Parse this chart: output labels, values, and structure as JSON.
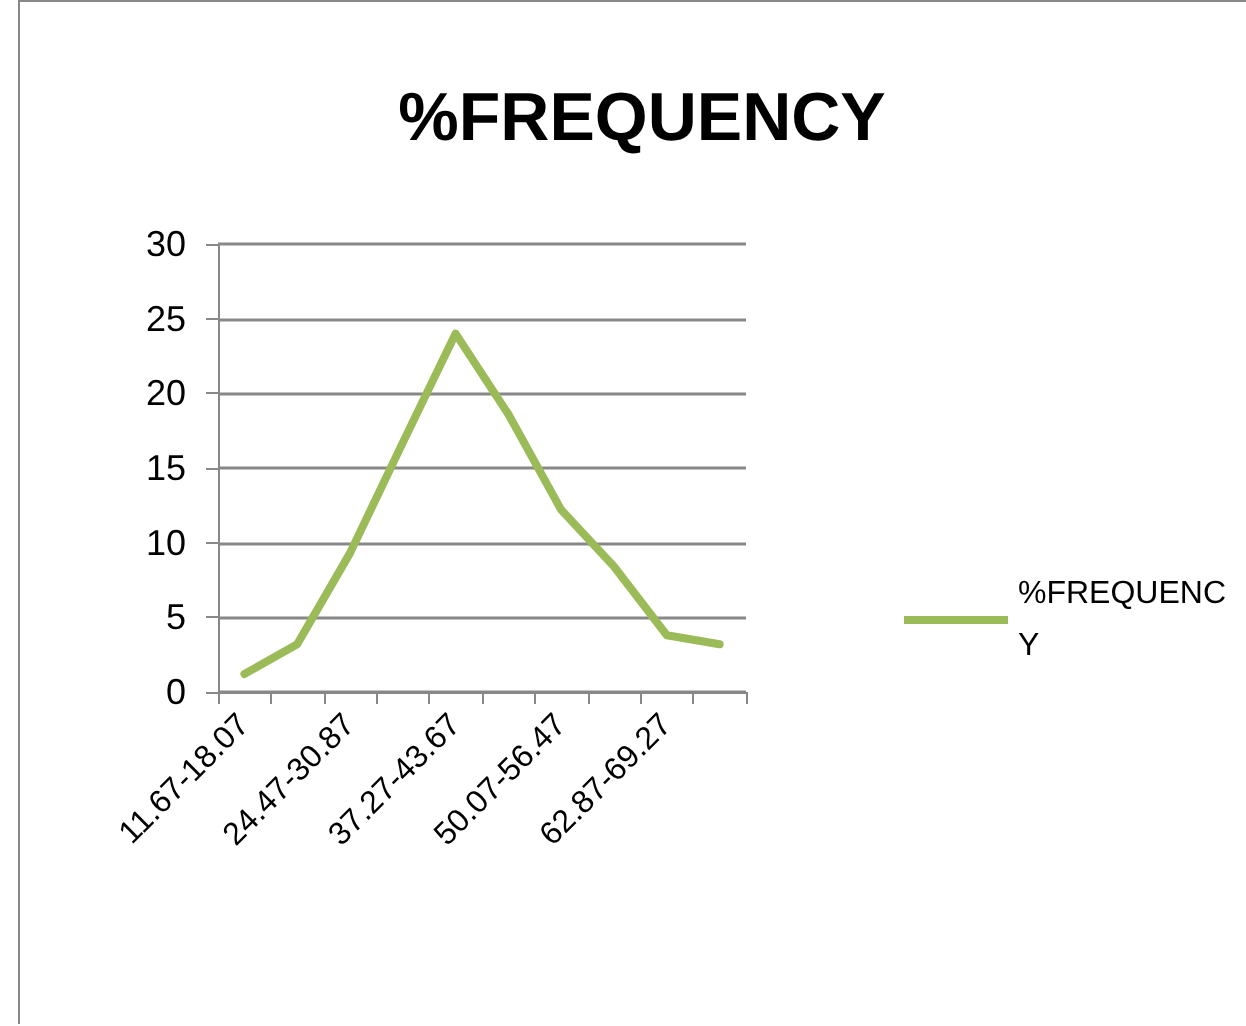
{
  "chart_data": {
    "type": "line",
    "title": "%FREQUENCY",
    "categories": [
      "11.67-18.07",
      null,
      "24.47-30.87",
      null,
      "37.27-43.67",
      null,
      "50.07-56.47",
      null,
      "62.87-69.27",
      null
    ],
    "series": [
      {
        "name": "%FREQUENCY",
        "color": "#9bbb59",
        "values": [
          1.2,
          3.2,
          9.3,
          16.7,
          24.0,
          18.6,
          12.2,
          8.4,
          3.8,
          3.2
        ]
      }
    ],
    "ylim": [
      0,
      30
    ],
    "yticks": [
      0,
      5,
      10,
      15,
      20,
      25,
      30
    ],
    "grid": "y",
    "legend": "right",
    "marker": "none",
    "line_style": "solid"
  }
}
